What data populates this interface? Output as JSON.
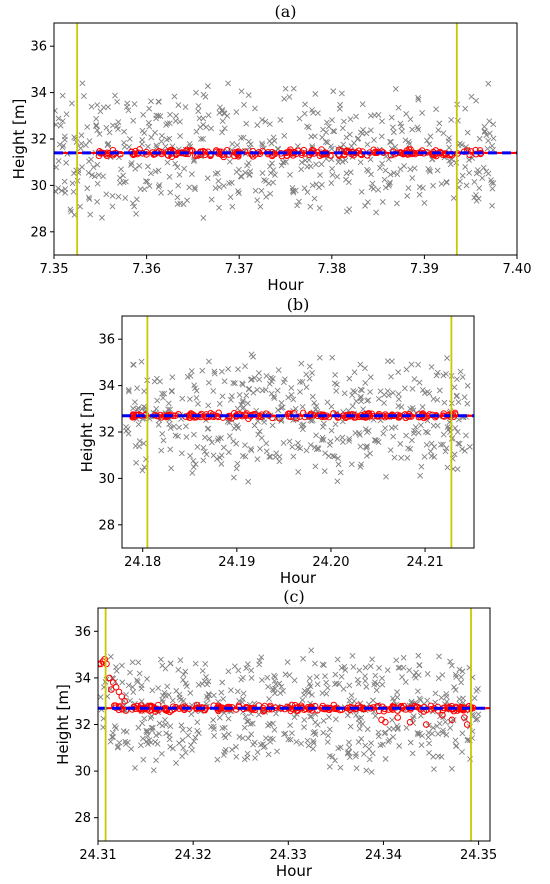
{
  "chart_data": [
    {
      "type": "scatter",
      "title": "(a)",
      "xlabel": "Hour",
      "ylabel": "Height [m]",
      "xlim": [
        7.35,
        7.4
      ],
      "ylim": [
        27.0,
        37.0
      ],
      "xticks": [
        7.35,
        7.36,
        7.37,
        7.38,
        7.39,
        7.4
      ],
      "xtick_labels": [
        "7.35",
        "7.36",
        "7.37",
        "7.38",
        "7.39",
        "7.40"
      ],
      "yticks": [
        28,
        30,
        32,
        34,
        36
      ],
      "ytick_labels": [
        "28",
        "30",
        "32",
        "34",
        "36"
      ],
      "vlines": [
        7.3525,
        7.3935
      ],
      "hline": 31.4,
      "signal": {
        "x_start": 7.3545,
        "x_end": 7.3965,
        "base": 31.4,
        "spread": 0.22,
        "count": 230
      },
      "noise": {
        "x_start": 7.35,
        "x_end": 7.3975,
        "center": 31.5,
        "spread": 2.2,
        "count": 560
      },
      "colors": {
        "noise": "#808080",
        "signal": "#ff0000",
        "mean_line": "#0000ff",
        "window": "#c8c800"
      }
    },
    {
      "type": "scatter",
      "title": "(b)",
      "xlabel": "Hour",
      "ylabel": "Height [m]",
      "xlim": [
        24.1778,
        24.2152
      ],
      "ylim": [
        27.0,
        37.0
      ],
      "xticks": [
        24.18,
        24.19,
        24.2,
        24.21
      ],
      "xtick_labels": [
        "24.18",
        "24.19",
        "24.20",
        "24.21"
      ],
      "yticks": [
        28,
        30,
        32,
        34,
        36
      ],
      "ytick_labels": [
        "28",
        "30",
        "32",
        "34",
        "36"
      ],
      "vlines": [
        24.1805,
        24.2128
      ],
      "hline": 32.7,
      "signal": {
        "x_start": 24.1788,
        "x_end": 24.2145,
        "base": 32.7,
        "spread": 0.15,
        "count": 190
      },
      "noise": {
        "x_start": 24.1781,
        "x_end": 24.2148,
        "center": 32.6,
        "spread": 2.1,
        "count": 470
      },
      "colors": {
        "noise": "#808080",
        "signal": "#ff0000",
        "mean_line": "#0000ff",
        "window": "#c8c800"
      }
    },
    {
      "type": "scatter",
      "title": "(c)",
      "xlabel": "Hour",
      "ylabel": "Height [m]",
      "xlim": [
        24.31,
        24.3512
      ],
      "ylim": [
        27.0,
        37.0
      ],
      "xticks": [
        24.31,
        24.32,
        24.33,
        24.34,
        24.35
      ],
      "xtick_labels": [
        "24.31",
        "24.32",
        "24.33",
        "24.34",
        "24.35"
      ],
      "yticks": [
        28,
        30,
        32,
        34,
        36
      ],
      "ytick_labels": [
        "28",
        "30",
        "32",
        "34",
        "36"
      ],
      "vlines": [
        24.3108,
        24.3492
      ],
      "hline": 32.7,
      "signal": {
        "x_start": 24.3112,
        "x_end": 24.3495,
        "base": 32.7,
        "spread": 0.18,
        "count": 230
      },
      "signal_extra": [
        {
          "x": 24.3101,
          "y": 34.6
        },
        {
          "x": 24.3103,
          "y": 34.6
        },
        {
          "x": 24.3105,
          "y": 34.7
        },
        {
          "x": 24.3107,
          "y": 34.8
        },
        {
          "x": 24.3109,
          "y": 34.6
        },
        {
          "x": 24.3112,
          "y": 34.0
        },
        {
          "x": 24.3114,
          "y": 33.5
        },
        {
          "x": 24.3116,
          "y": 33.8
        },
        {
          "x": 24.3119,
          "y": 33.6
        },
        {
          "x": 24.3122,
          "y": 33.4
        },
        {
          "x": 24.3125,
          "y": 33.2
        },
        {
          "x": 24.3128,
          "y": 33.0
        },
        {
          "x": 24.3398,
          "y": 32.2
        },
        {
          "x": 24.3402,
          "y": 32.1
        },
        {
          "x": 24.3415,
          "y": 32.3
        },
        {
          "x": 24.3428,
          "y": 32.1
        },
        {
          "x": 24.3445,
          "y": 32.0
        },
        {
          "x": 24.3462,
          "y": 32.4
        },
        {
          "x": 24.3472,
          "y": 32.2
        },
        {
          "x": 24.3485,
          "y": 32.3
        },
        {
          "x": 24.3488,
          "y": 32.0
        }
      ],
      "noise": {
        "x_start": 24.3102,
        "x_end": 24.35,
        "center": 32.6,
        "spread": 2.0,
        "count": 560
      },
      "colors": {
        "noise": "#808080",
        "signal": "#ff0000",
        "mean_line": "#0000ff",
        "window": "#c8c800"
      }
    }
  ]
}
